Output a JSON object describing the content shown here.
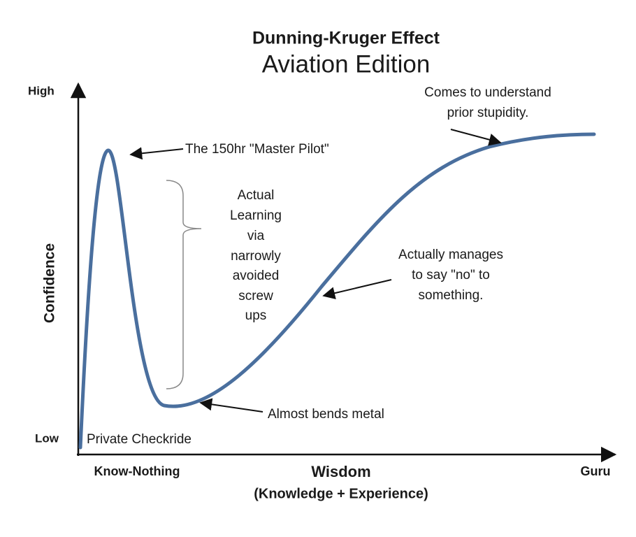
{
  "title": "Dunning-Kruger Effect",
  "subtitle": "Aviation Edition",
  "y_axis": {
    "label": "Confidence",
    "high": "High",
    "low": "Low"
  },
  "x_axis": {
    "label": "Wisdom",
    "sublabel": "(Knowledge + Experience)",
    "left": "Know-Nothing",
    "right": "Guru"
  },
  "annotations": {
    "peak": "The 150hr \"Master Pilot\"",
    "learning": [
      "Actual",
      "Learning",
      "via",
      "narrowly",
      "avoided",
      "screw",
      "ups"
    ],
    "understand": [
      "Comes to understand",
      "prior stupidity."
    ],
    "no": [
      "Actually manages",
      "to say \"no\" to",
      "something."
    ],
    "metal": "Almost bends metal",
    "checkride": "Private Checkride"
  }
}
